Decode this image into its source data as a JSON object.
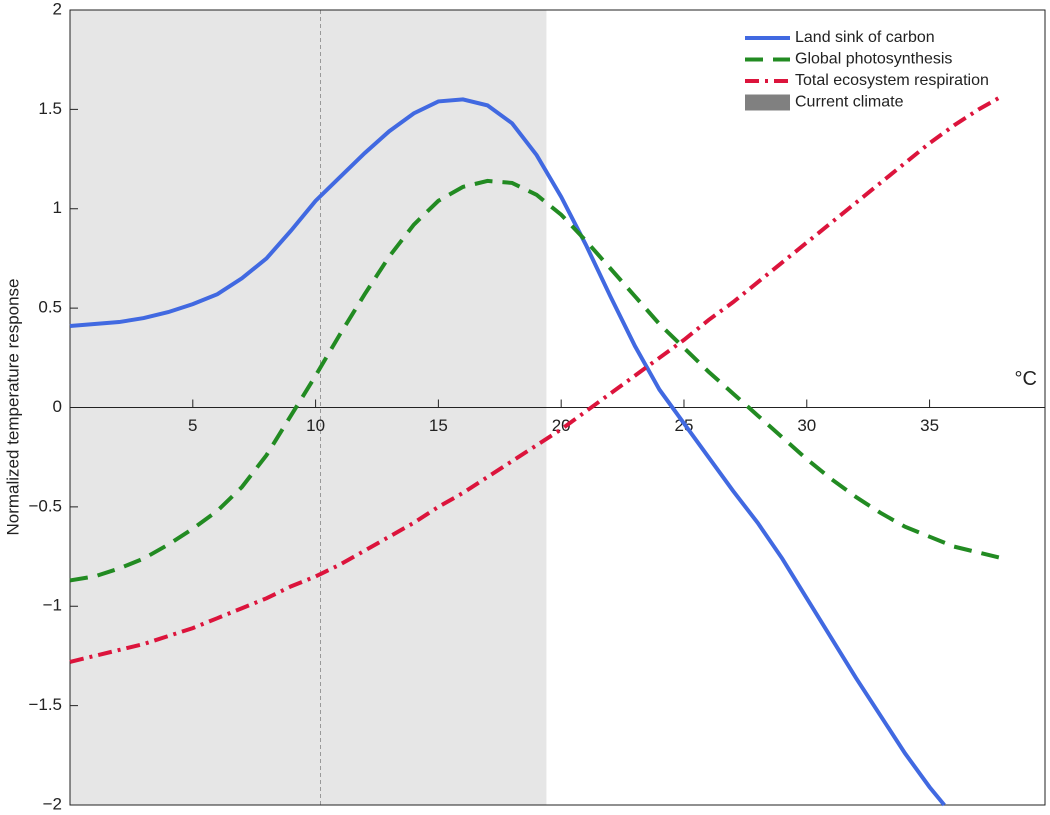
{
  "chart_data": {
    "type": "line",
    "ylabel": "Normalized temperature response",
    "xlabel": "°C",
    "xlim": [
      0,
      39.7
    ],
    "ylim": [
      -2,
      2
    ],
    "xticks": [
      5,
      10,
      15,
      20,
      25,
      30,
      35
    ],
    "yticks": [
      {
        "value": -2,
        "label": "−2"
      },
      {
        "value": -1.5,
        "label": "−1.5"
      },
      {
        "value": -1,
        "label": "−1"
      },
      {
        "value": -0.5,
        "label": "−0.5"
      },
      0,
      0.5,
      1,
      1.5,
      2
    ],
    "legend": "upper right",
    "shaded": {
      "name": "Current climate",
      "range": [
        0,
        19.4
      ],
      "color": "#e6e6e6",
      "legend_color": "#808080"
    },
    "vline": 10.2,
    "series": [
      {
        "name": "Land sink of carbon",
        "color": "#4169e1",
        "style": "solid",
        "x": [
          0,
          1,
          2,
          3,
          4,
          5,
          6,
          7,
          8,
          9,
          10,
          11,
          12,
          13,
          14,
          15,
          16,
          17,
          18,
          19,
          20,
          21,
          22,
          23,
          24,
          25,
          26,
          27,
          28,
          29,
          30,
          31,
          32,
          33,
          34,
          35,
          35.6
        ],
        "values": [
          0.41,
          0.42,
          0.43,
          0.45,
          0.48,
          0.52,
          0.57,
          0.65,
          0.75,
          0.89,
          1.04,
          1.16,
          1.28,
          1.39,
          1.48,
          1.54,
          1.55,
          1.52,
          1.43,
          1.27,
          1.06,
          0.82,
          0.56,
          0.31,
          0.09,
          -0.08,
          -0.25,
          -0.42,
          -0.58,
          -0.76,
          -0.96,
          -1.16,
          -1.36,
          -1.55,
          -1.74,
          -1.91,
          -2.0
        ]
      },
      {
        "name": "Global photosynthesis",
        "color": "#228b22",
        "style": "dashed",
        "x": [
          0,
          1,
          2,
          3,
          4,
          5,
          6,
          7,
          8,
          9,
          10,
          11,
          12,
          13,
          14,
          15,
          16,
          17,
          18,
          19,
          20,
          21,
          22,
          23,
          24,
          25,
          26,
          27,
          28,
          29,
          30,
          31,
          32,
          33,
          34,
          35,
          36,
          37,
          38
        ],
        "values": [
          -0.87,
          -0.85,
          -0.81,
          -0.76,
          -0.69,
          -0.61,
          -0.52,
          -0.4,
          -0.24,
          -0.04,
          0.16,
          0.37,
          0.57,
          0.76,
          0.92,
          1.04,
          1.11,
          1.14,
          1.13,
          1.07,
          0.97,
          0.84,
          0.7,
          0.56,
          0.42,
          0.3,
          0.18,
          0.07,
          -0.04,
          -0.15,
          -0.26,
          -0.36,
          -0.45,
          -0.53,
          -0.6,
          -0.65,
          -0.7,
          -0.73,
          -0.76
        ]
      },
      {
        "name": "Total ecosystem respiration",
        "color": "#dc143c",
        "style": "dashdot",
        "x": [
          0,
          1,
          2,
          3,
          4,
          5,
          6,
          7,
          8,
          9,
          10,
          11,
          12,
          13,
          14,
          15,
          16,
          17,
          18,
          19,
          20,
          21,
          22,
          23,
          24,
          25,
          26,
          27,
          28,
          29,
          30,
          31,
          32,
          33,
          34,
          35,
          36,
          37,
          38
        ],
        "values": [
          -1.28,
          -1.25,
          -1.22,
          -1.19,
          -1.15,
          -1.11,
          -1.06,
          -1.01,
          -0.96,
          -0.9,
          -0.85,
          -0.79,
          -0.72,
          -0.65,
          -0.58,
          -0.5,
          -0.43,
          -0.35,
          -0.27,
          -0.19,
          -0.11,
          -0.02,
          0.07,
          0.16,
          0.25,
          0.34,
          0.44,
          0.53,
          0.63,
          0.73,
          0.83,
          0.93,
          1.03,
          1.13,
          1.23,
          1.33,
          1.42,
          1.5,
          1.57
        ]
      }
    ]
  }
}
